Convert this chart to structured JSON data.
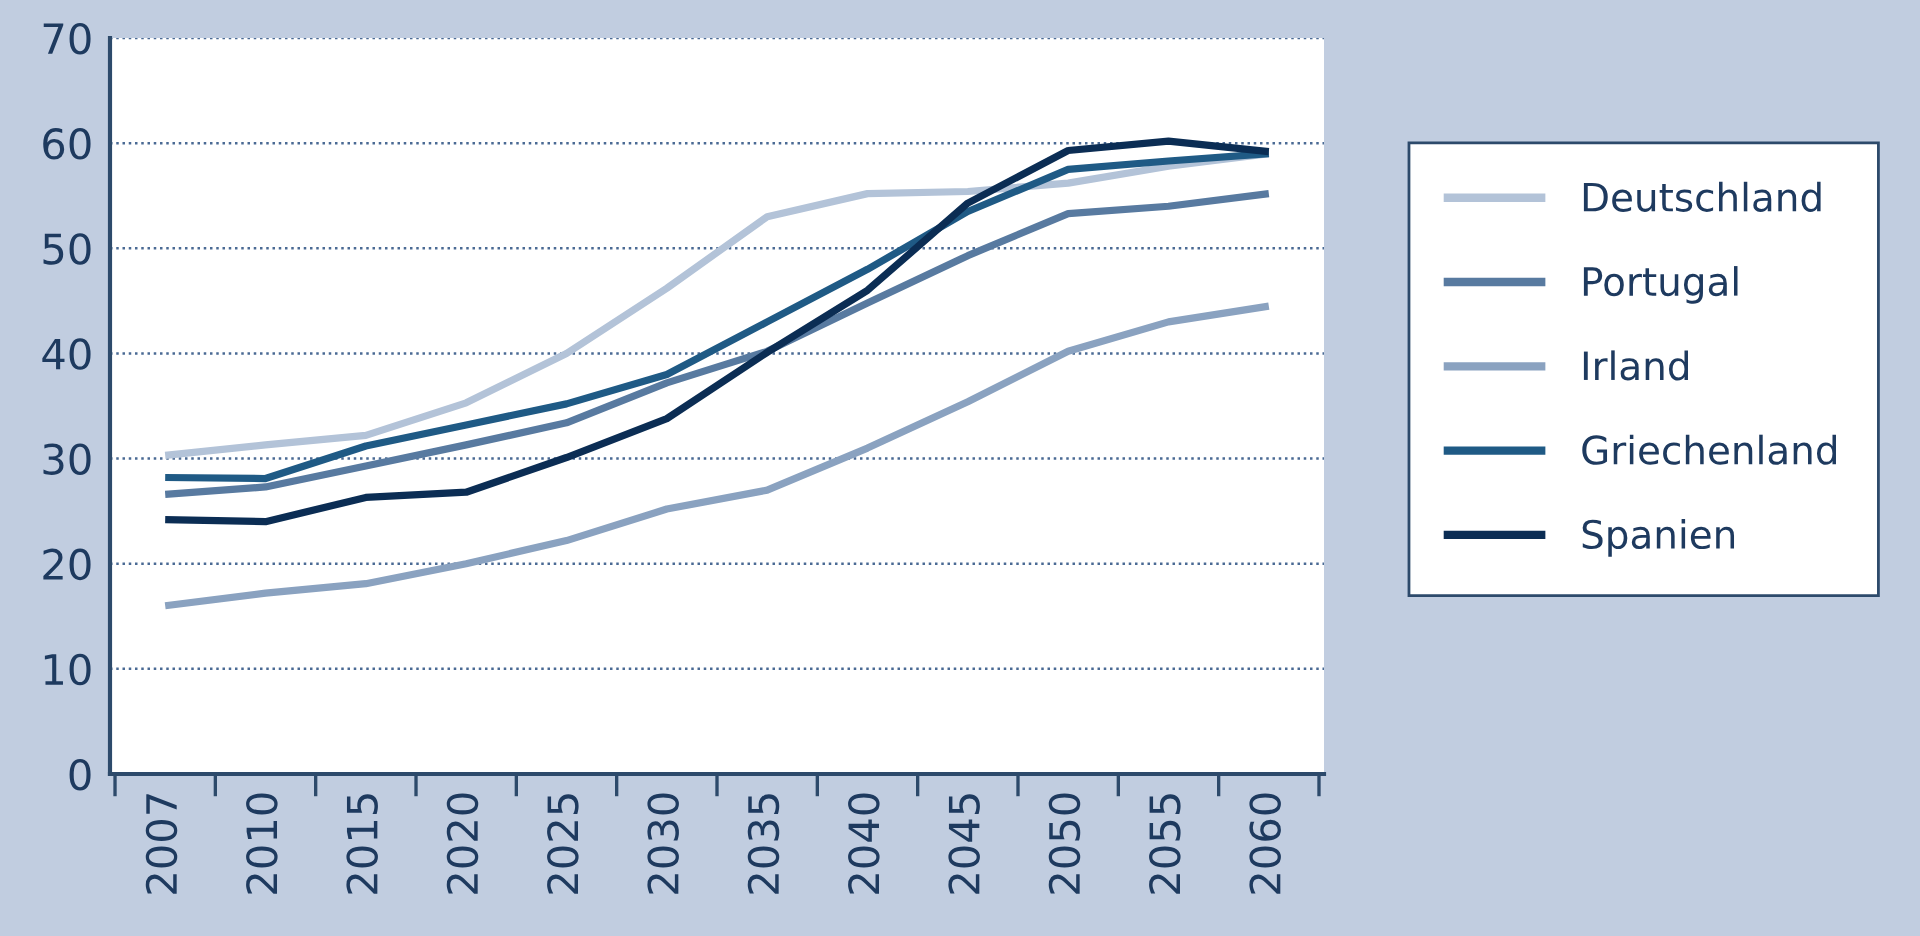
{
  "chart_data": {
    "type": "line",
    "categories": [
      "2007",
      "2010",
      "2015",
      "2020",
      "2025",
      "2030",
      "2035",
      "2040",
      "2045",
      "2050",
      "2055",
      "2060"
    ],
    "series": [
      {
        "name": "Deutschland",
        "color": "#b3c3d8",
        "values": [
          30.3,
          31.3,
          32.2,
          35.3,
          40,
          46.2,
          53,
          55.2,
          55.4,
          56.2,
          57.8,
          59
        ]
      },
      {
        "name": "Portugal",
        "color": "#587aa0",
        "values": [
          26.6,
          27.3,
          29.3,
          31.3,
          33.4,
          37.2,
          40.2,
          44.8,
          49.3,
          53.3,
          54,
          55.2
        ]
      },
      {
        "name": "Irland",
        "color": "#8aa2c0",
        "values": [
          16,
          17.2,
          18.1,
          20,
          22.2,
          25.2,
          27,
          31,
          35.4,
          40.2,
          43,
          44.5
        ]
      },
      {
        "name": "Griechenland",
        "color": "#1f5a85",
        "values": [
          28.2,
          28.1,
          31.2,
          33.2,
          35.2,
          38,
          43,
          48,
          53.5,
          57.5,
          58.3,
          59
        ]
      },
      {
        "name": "Spanien",
        "color": "#0b2d54",
        "values": [
          24.2,
          24,
          26.3,
          26.8,
          30.1,
          33.8,
          40.1,
          46,
          54.3,
          59.3,
          60.2,
          59.2
        ]
      }
    ],
    "ylim": [
      0,
      70
    ],
    "yticks": [
      0,
      10,
      20,
      30,
      40,
      50,
      60,
      70
    ],
    "grid": "y",
    "legend": "right",
    "marker": "none",
    "line_style": "solid"
  }
}
